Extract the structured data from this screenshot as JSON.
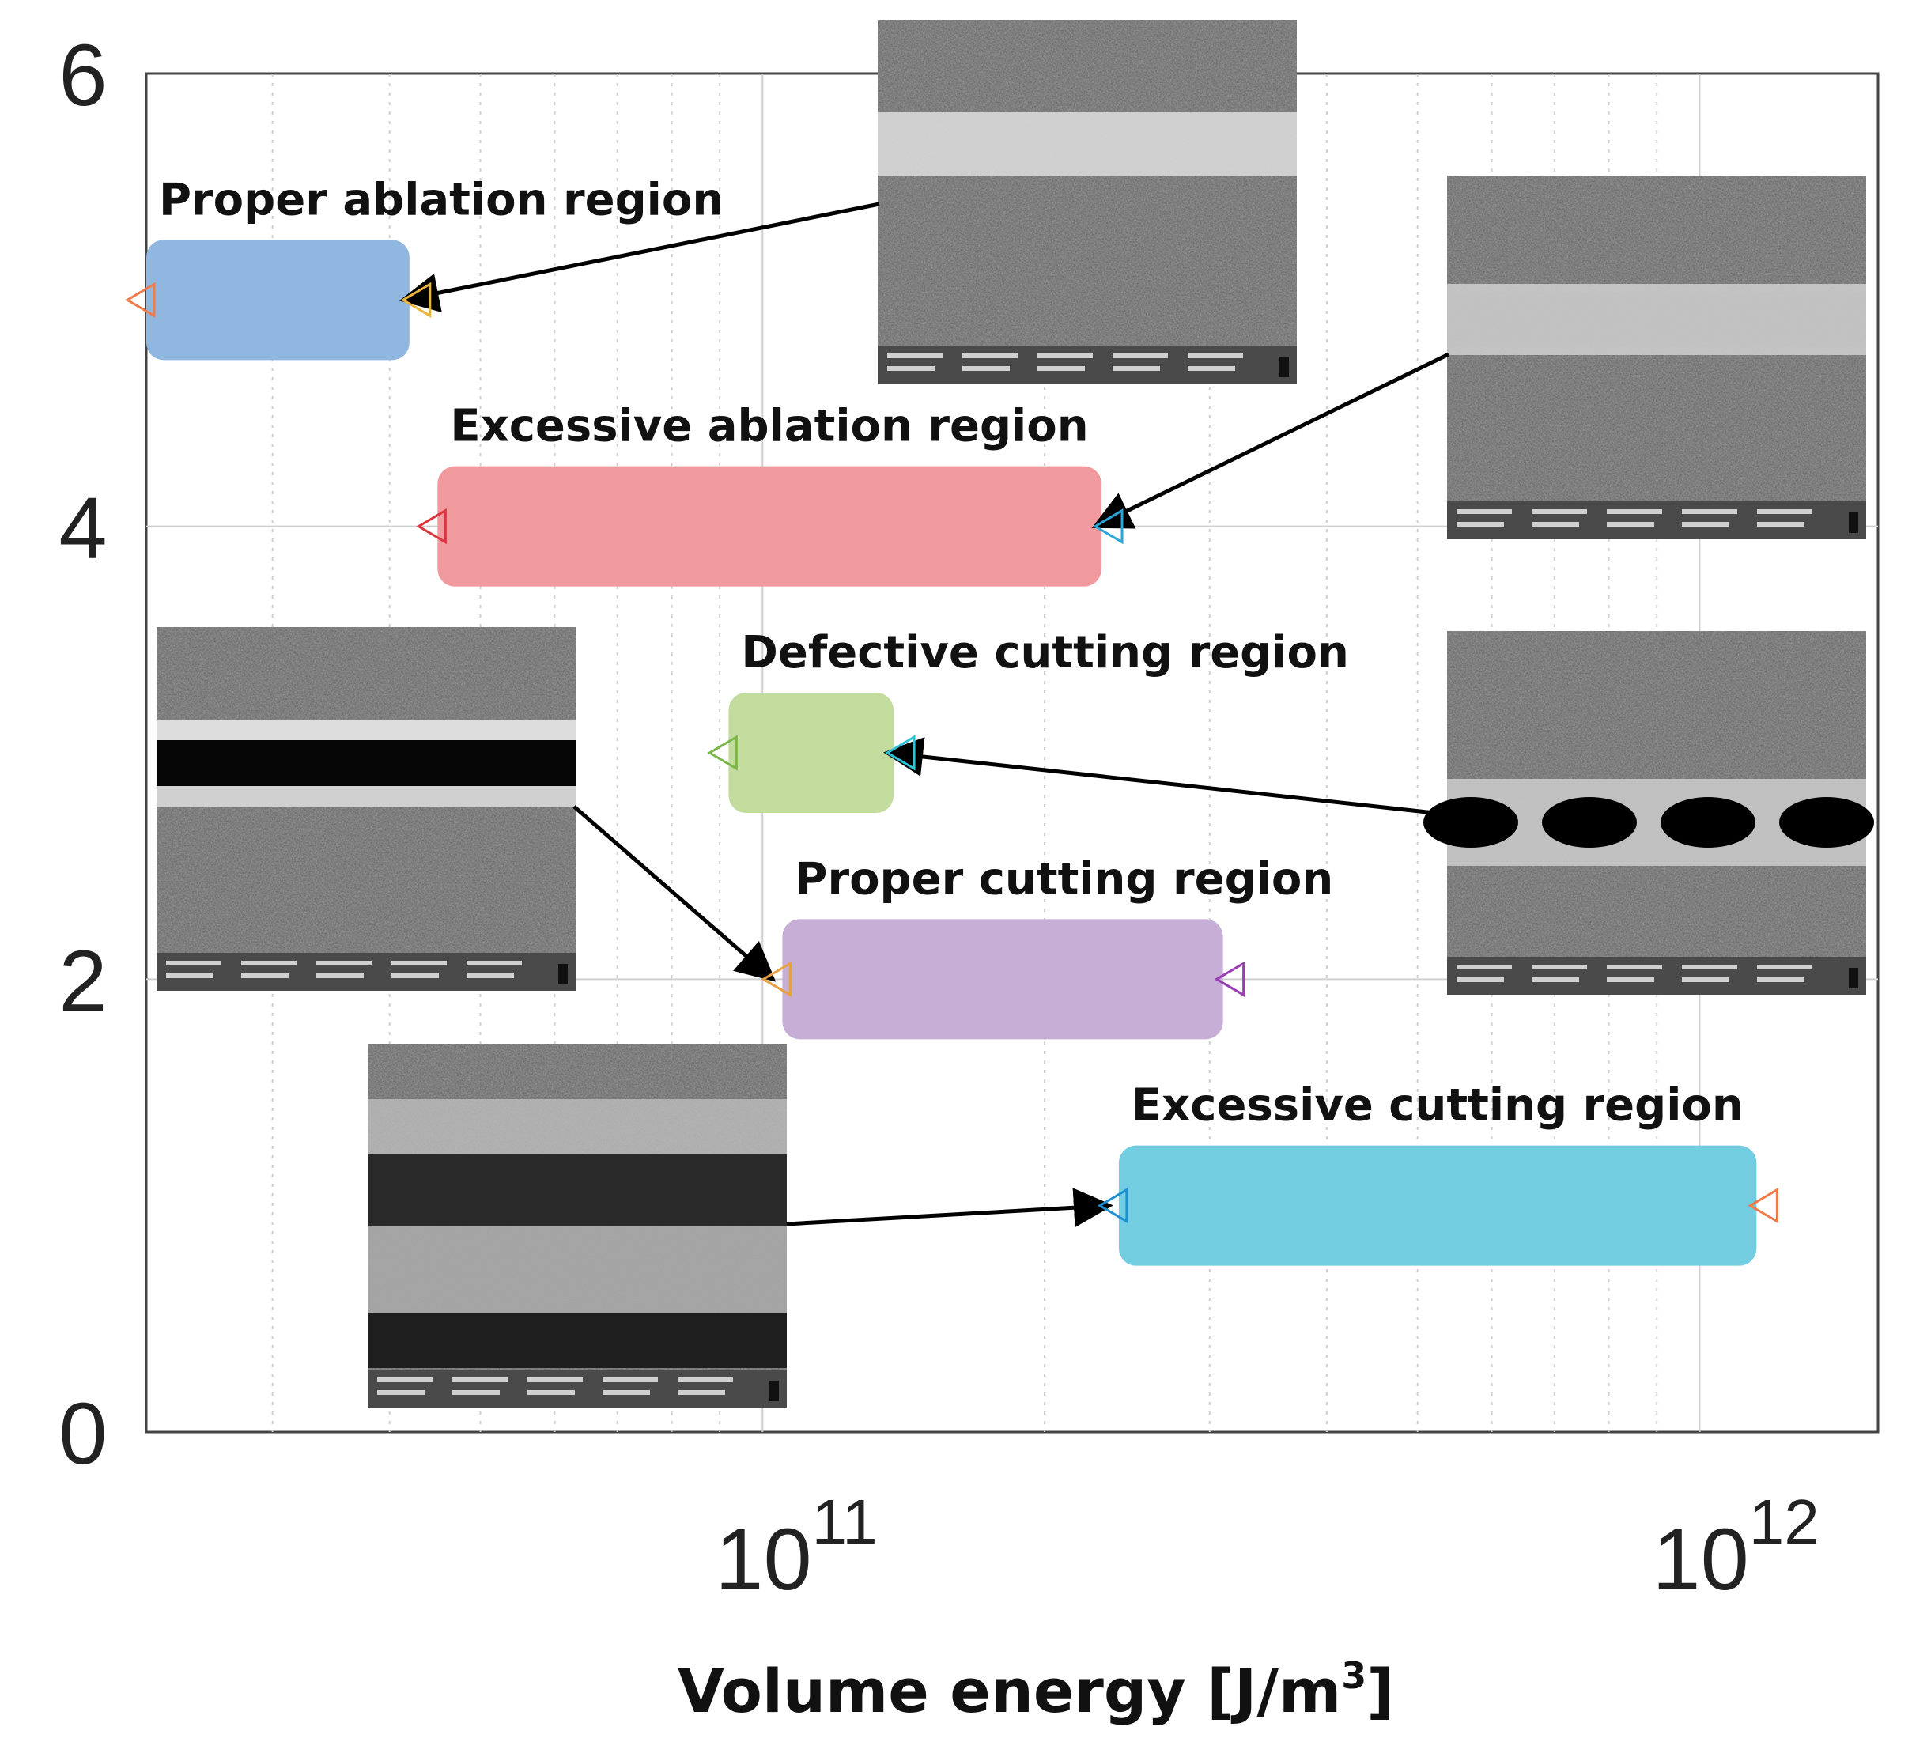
{
  "chart_data": {
    "type": "range",
    "title": "",
    "xlabel": "Volume energy [J/m",
    "xlabel_sup": "3",
    "xlabel_close": "]",
    "ylabel": "",
    "xscale": "log",
    "xlim": [
      22000000000.0,
      1550000000000.0
    ],
    "ylim": [
      0,
      6
    ],
    "x_ticks": [
      {
        "value": 100000000000.0,
        "base": "10",
        "exp": "11"
      },
      {
        "value": 1000000000000.0,
        "base": "10",
        "exp": "12"
      }
    ],
    "y_ticks": [
      {
        "value": 0,
        "label": "0"
      },
      {
        "value": 2,
        "label": "2"
      },
      {
        "value": 4,
        "label": "4"
      },
      {
        "value": 6,
        "label": "6"
      }
    ],
    "grid": true,
    "regions": [
      {
        "name": "Proper ablation region",
        "y": 5,
        "x_start": 22000000000.0,
        "x_end": 42000000000.0,
        "color": "#8fb7e0",
        "marker_start_color": "#f07c4a",
        "marker_end_color": "#e8b43a",
        "image_anchor": "end"
      },
      {
        "name": "Excessive ablation region",
        "y": 4,
        "x_start": 45000000000.0,
        "x_end": 230000000000.0,
        "color": "#f09a9e",
        "marker_start_color": "#d9363e",
        "marker_end_color": "#2ba6d8",
        "image_anchor": "end"
      },
      {
        "name": "Defective cutting region",
        "y": 3,
        "x_start": 92000000000.0,
        "x_end": 138000000000.0,
        "color": "#c1dc9d",
        "marker_start_color": "#7ab648",
        "marker_end_color": "#2ec4d8",
        "image_anchor": "end"
      },
      {
        "name": "Proper cutting region",
        "y": 2,
        "x_start": 105000000000.0,
        "x_end": 310000000000.0,
        "color": "#c6aed6",
        "marker_start_color": "#e8a040",
        "marker_end_color": "#9a3cb4",
        "image_anchor": "start"
      },
      {
        "name": "Excessive cutting region",
        "y": 1,
        "x_start": 240000000000.0,
        "x_end": 1150000000000.0,
        "color": "#73cde0",
        "marker_start_color": "#1e8fd0",
        "marker_end_color": "#f07c4a",
        "image_anchor": "start"
      }
    ]
  },
  "micrographs": [
    {
      "region": "Proper ablation region",
      "feature": "shallow-groove",
      "holes": 0
    },
    {
      "region": "Excessive ablation region",
      "feature": "wide-groove",
      "holes": 0
    },
    {
      "region": "Proper cutting region",
      "feature": "clean-cut",
      "holes": 0
    },
    {
      "region": "Defective cutting region",
      "feature": "intermittent-holes",
      "holes": 4
    },
    {
      "region": "Excessive cutting region",
      "feature": "wide-cut",
      "holes": 0
    }
  ],
  "colors": {
    "axis": "#444444",
    "grid": "#cfcfcf",
    "arrow": "#000000"
  }
}
